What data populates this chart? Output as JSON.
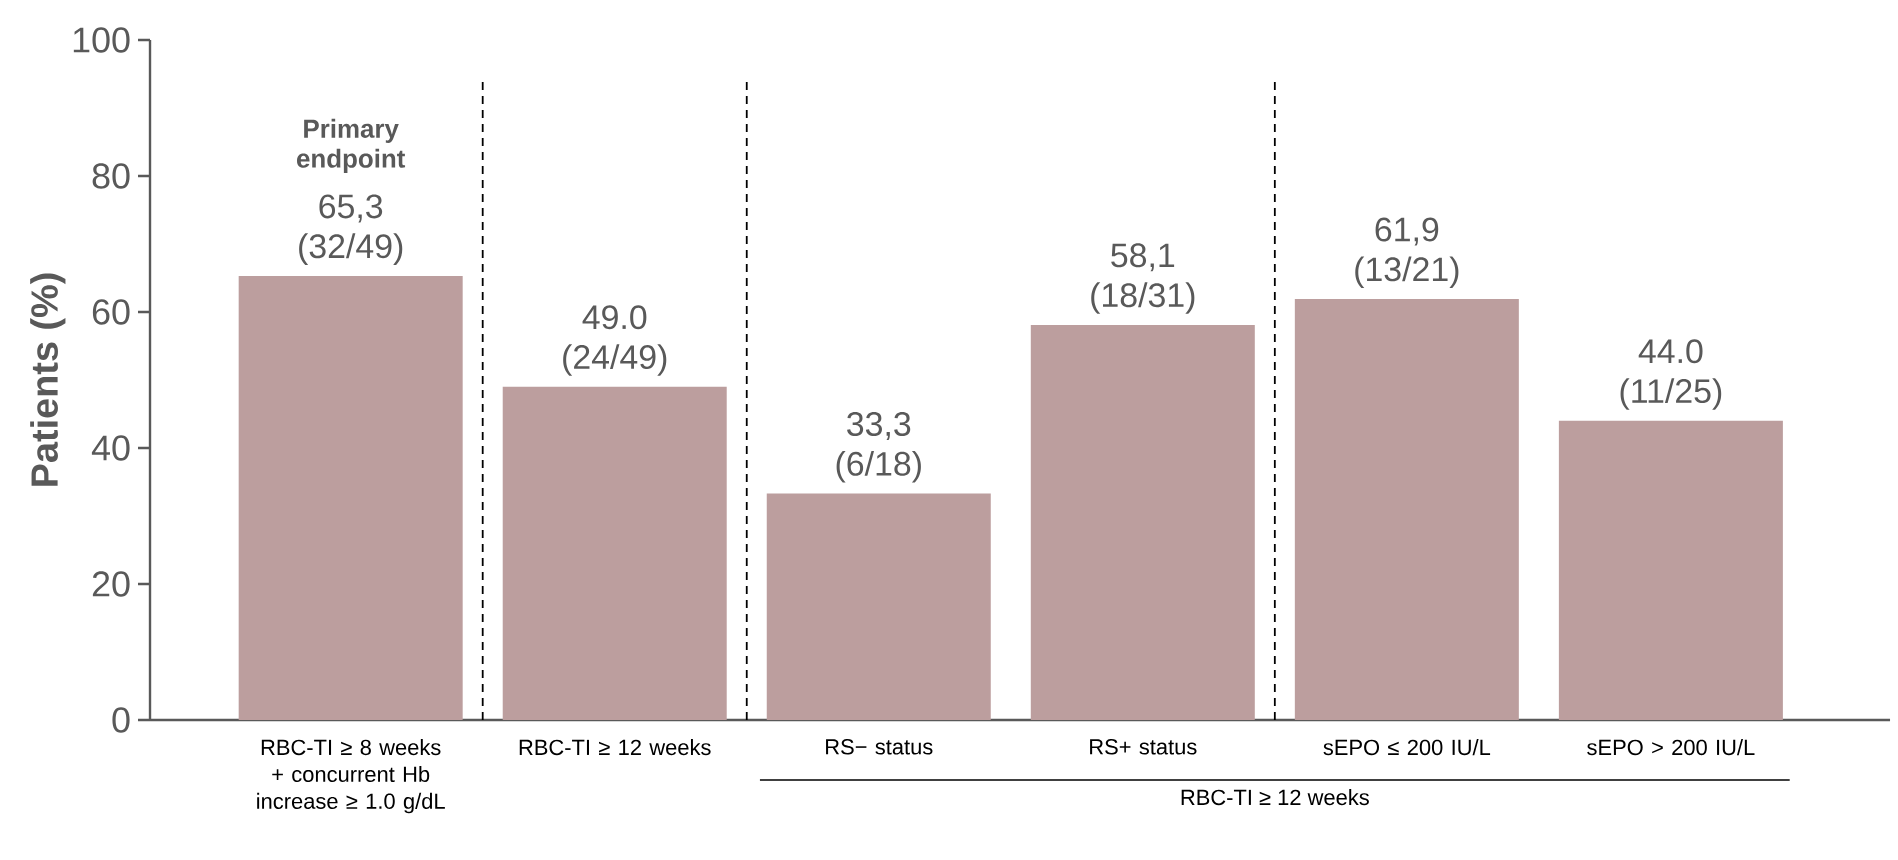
{
  "chart_data": {
    "type": "bar",
    "ylabel": "Patients (%)",
    "categories": [
      "RBC-TI ≥ 8 weeks + concurrent Hb increase ≥ 1.0 g/dL",
      "RBC-TI ≥ 12 weeks",
      "RS− status",
      "RS+ status",
      "sEPO ≤ 200 IU/L",
      "sEPO > 200 IU/L"
    ],
    "values": [
      65.3,
      49.0,
      33.3,
      58.1,
      61.9,
      44.0
    ],
    "value_labels": [
      "65,3 (32/49)",
      "49.0 (24/49)",
      "33,3 (6/18)",
      "58,1 (18/31)",
      "61,9 (13/21)",
      "44.0 (11/25)"
    ],
    "color": "#bc9e9e",
    "ylim": [
      0,
      100
    ],
    "yticks": [
      0,
      20,
      40,
      60,
      80,
      100
    ],
    "grid": false,
    "annotations": [
      "Primary endpoint",
      "RBC-TI ≥ 12 weeks"
    ]
  }
}
